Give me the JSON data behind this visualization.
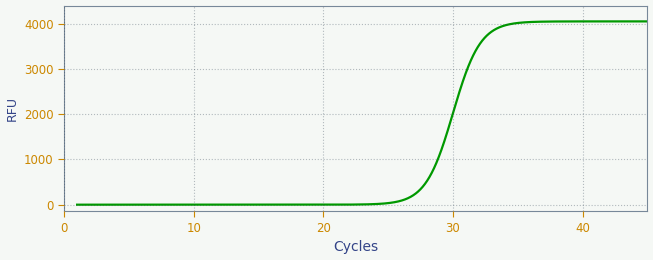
{
  "title": "",
  "xlabel": "Cycles",
  "ylabel": "RFU",
  "xlim": [
    0,
    45
  ],
  "ylim": [
    -150,
    4400
  ],
  "yticks": [
    0,
    1000,
    2000,
    3000,
    4000
  ],
  "xticks": [
    0,
    10,
    20,
    30,
    40
  ],
  "line_color": "#009900",
  "background_color": "#f5f8f5",
  "sigmoid_L": 4050,
  "sigmoid_k": 0.95,
  "sigmoid_x0": 30.0,
  "x_start": 1,
  "x_end": 45,
  "grid_color": "#334455",
  "grid_alpha": 0.35,
  "tick_label_color": "#cc8800",
  "axis_label_color": "#334488",
  "axis_color": "#778899",
  "ylabel_fontsize": 9,
  "xlabel_fontsize": 10,
  "tick_fontsize": 8.5,
  "linewidth": 1.6
}
